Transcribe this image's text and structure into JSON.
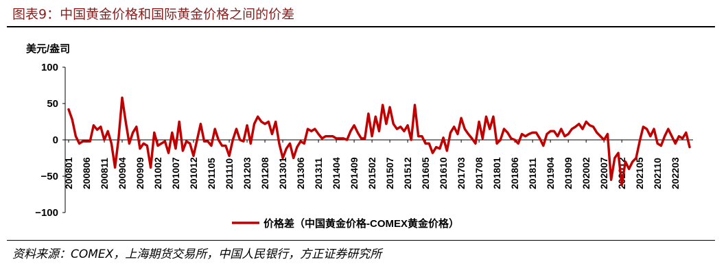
{
  "figure": {
    "title": "图表9：中国黄金价格和国际黄金价格之间的价差",
    "source": "资料来源：COMEX，上海期货交易所，中国人民银行，方正证券研究所"
  },
  "colors": {
    "series": "#c00000",
    "title": "#8c1c1c",
    "axis": "#000000"
  },
  "chart_data": {
    "type": "line",
    "title": "",
    "ylabel": "美元/盎司",
    "xlabel": "",
    "ylim": [
      -100,
      100
    ],
    "yticks": [
      100,
      50,
      0,
      -50,
      -100
    ],
    "x_start": "2008-01",
    "x_end": "2022-03",
    "xtick_labels": [
      "200801",
      "200806",
      "200811",
      "200904",
      "200909",
      "201002",
      "201007",
      "201012",
      "201105",
      "201110",
      "201203",
      "201208",
      "201301",
      "201306",
      "201311",
      "201404",
      "201409",
      "201502",
      "201507",
      "201512",
      "201605",
      "201610",
      "201703",
      "201708",
      "201801",
      "201806",
      "201811",
      "201904",
      "201909",
      "202002",
      "202007",
      "202012",
      "202105",
      "202110",
      "202203"
    ],
    "legend": "bottom-center",
    "grid": false,
    "series": [
      {
        "name": "价格差（中国黄金价格-COMEX黄金价格）",
        "values": [
          42,
          28,
          5,
          -5,
          -2,
          -2,
          -2,
          20,
          14,
          18,
          0,
          12,
          -5,
          -38,
          2,
          58,
          25,
          -5,
          10,
          18,
          -12,
          -5,
          -8,
          -38,
          10,
          -8,
          -5,
          -2,
          -18,
          10,
          -12,
          25,
          -15,
          -2,
          -5,
          -22,
          0,
          22,
          -2,
          -2,
          -8,
          15,
          0,
          -8,
          -8,
          -22,
          0,
          15,
          0,
          -2,
          20,
          -5,
          22,
          32,
          25,
          22,
          25,
          8,
          25,
          -5,
          -25,
          -12,
          -5,
          -25,
          -10,
          -2,
          -5,
          15,
          12,
          15,
          8,
          2,
          5,
          5,
          5,
          2,
          2,
          2,
          0,
          12,
          20,
          10,
          2,
          2,
          36,
          5,
          32,
          12,
          48,
          22,
          45,
          22,
          15,
          18,
          12,
          20,
          0,
          48,
          5,
          5,
          -5,
          -5,
          -18,
          -10,
          -12,
          3,
          -15,
          10,
          18,
          8,
          30,
          15,
          8,
          2,
          -5,
          25,
          2,
          32,
          15,
          32,
          -5,
          0,
          15,
          10,
          2,
          0,
          -5,
          8,
          5,
          8,
          10,
          10,
          2,
          -8,
          8,
          12,
          12,
          5,
          15,
          5,
          8,
          15,
          18,
          22,
          15,
          25,
          20,
          18,
          10,
          5,
          0,
          8,
          -55,
          -25,
          -18,
          -62,
          -30,
          -40,
          -30,
          -25,
          -2,
          18,
          15,
          5,
          15,
          -5,
          -8,
          5,
          15,
          5,
          -5,
          5,
          2,
          10,
          -10
        ]
      }
    ]
  }
}
